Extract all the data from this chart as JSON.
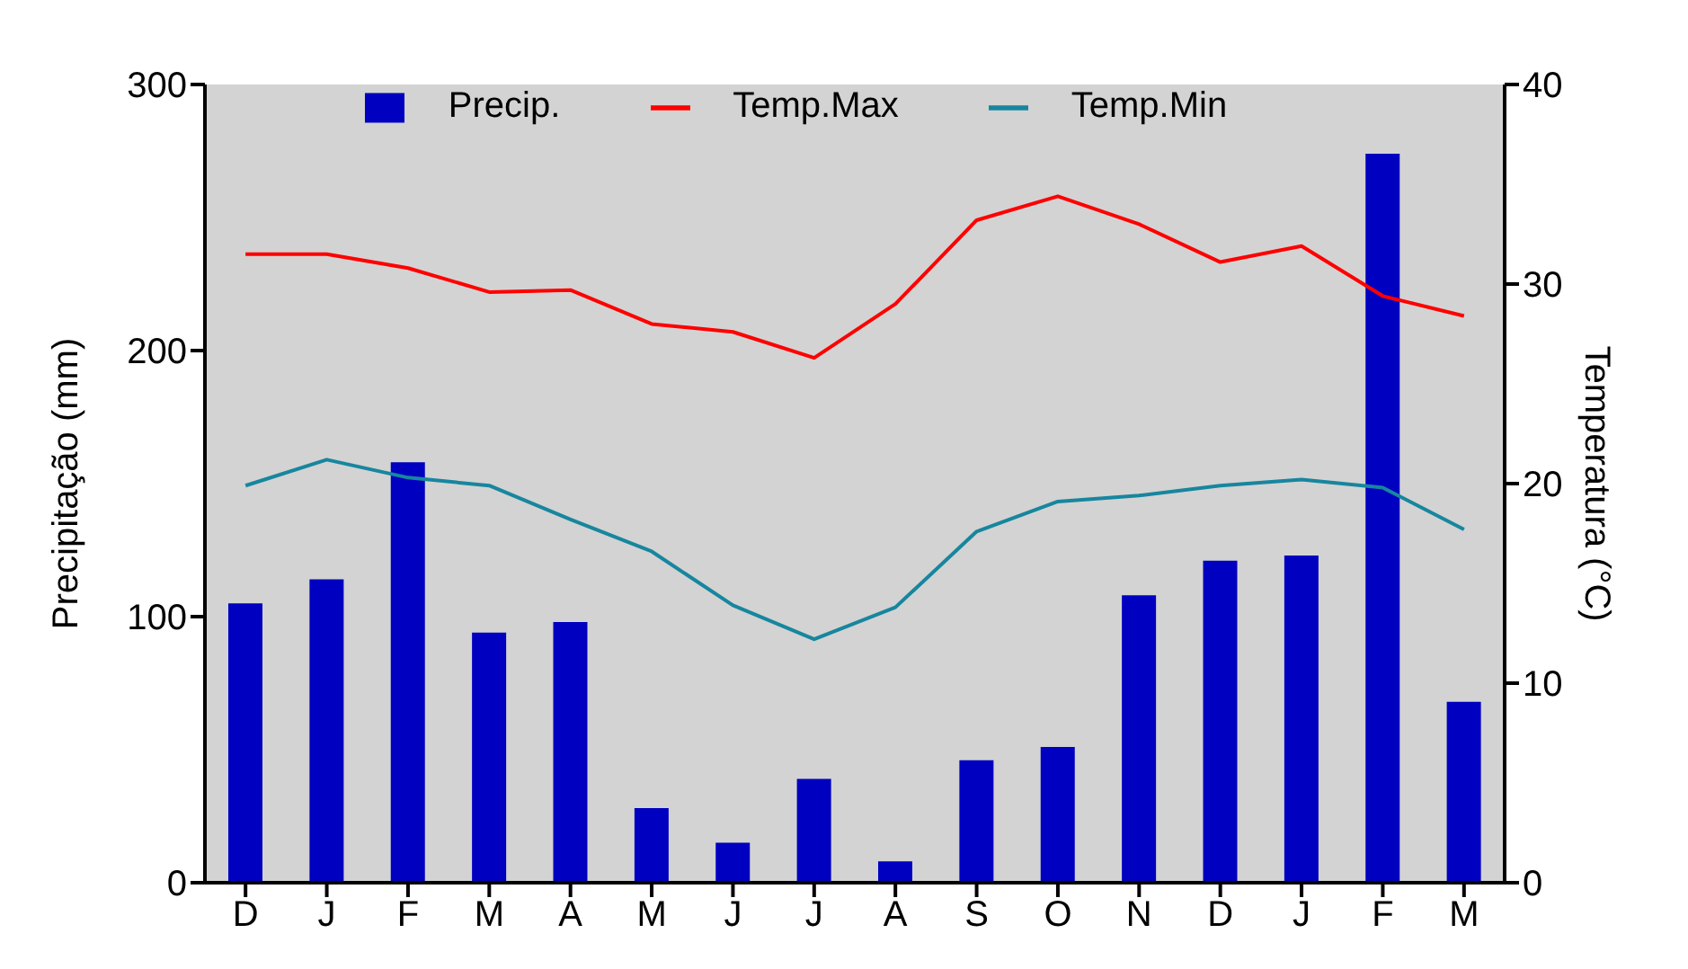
{
  "chart_data": {
    "type": "bar",
    "ylabel": "Precipitação (mm)",
    "y2label": "Temperatura (°C)",
    "categories": [
      "D",
      "J",
      "F",
      "M",
      "A",
      "M",
      "J",
      "J",
      "A",
      "S",
      "O",
      "N",
      "D",
      "J",
      "F",
      "M"
    ],
    "series": [
      {
        "name": "Precip.",
        "color": "#0000c0",
        "values": [
          105,
          114,
          158,
          94,
          98,
          28,
          15,
          39,
          8,
          46,
          51,
          108,
          121,
          123,
          274,
          68
        ]
      },
      {
        "name": "Temp.Max",
        "type": "line",
        "axis": "y2",
        "color": "#ff0000",
        "values": [
          31.5,
          31.5,
          30.8,
          29.6,
          29.7,
          28.0,
          27.6,
          26.3,
          29.0,
          33.2,
          34.4,
          33.0,
          31.1,
          31.9,
          29.4,
          28.4
        ]
      },
      {
        "name": "Temp.Min",
        "type": "line",
        "axis": "y2",
        "color": "#17869e",
        "values": [
          19.9,
          21.2,
          20.3,
          19.9,
          18.2,
          16.6,
          13.9,
          12.2,
          13.8,
          17.6,
          19.1,
          19.4,
          19.9,
          20.2,
          19.8,
          17.7
        ]
      }
    ],
    "ylim": [
      0,
      300
    ],
    "yticks": [
      0,
      100,
      200,
      300
    ],
    "y2lim": [
      0,
      40
    ],
    "y2ticks": [
      0,
      10,
      20,
      30,
      40
    ],
    "grid": false,
    "legend": "top",
    "marker": "none",
    "line_style": "solid"
  }
}
